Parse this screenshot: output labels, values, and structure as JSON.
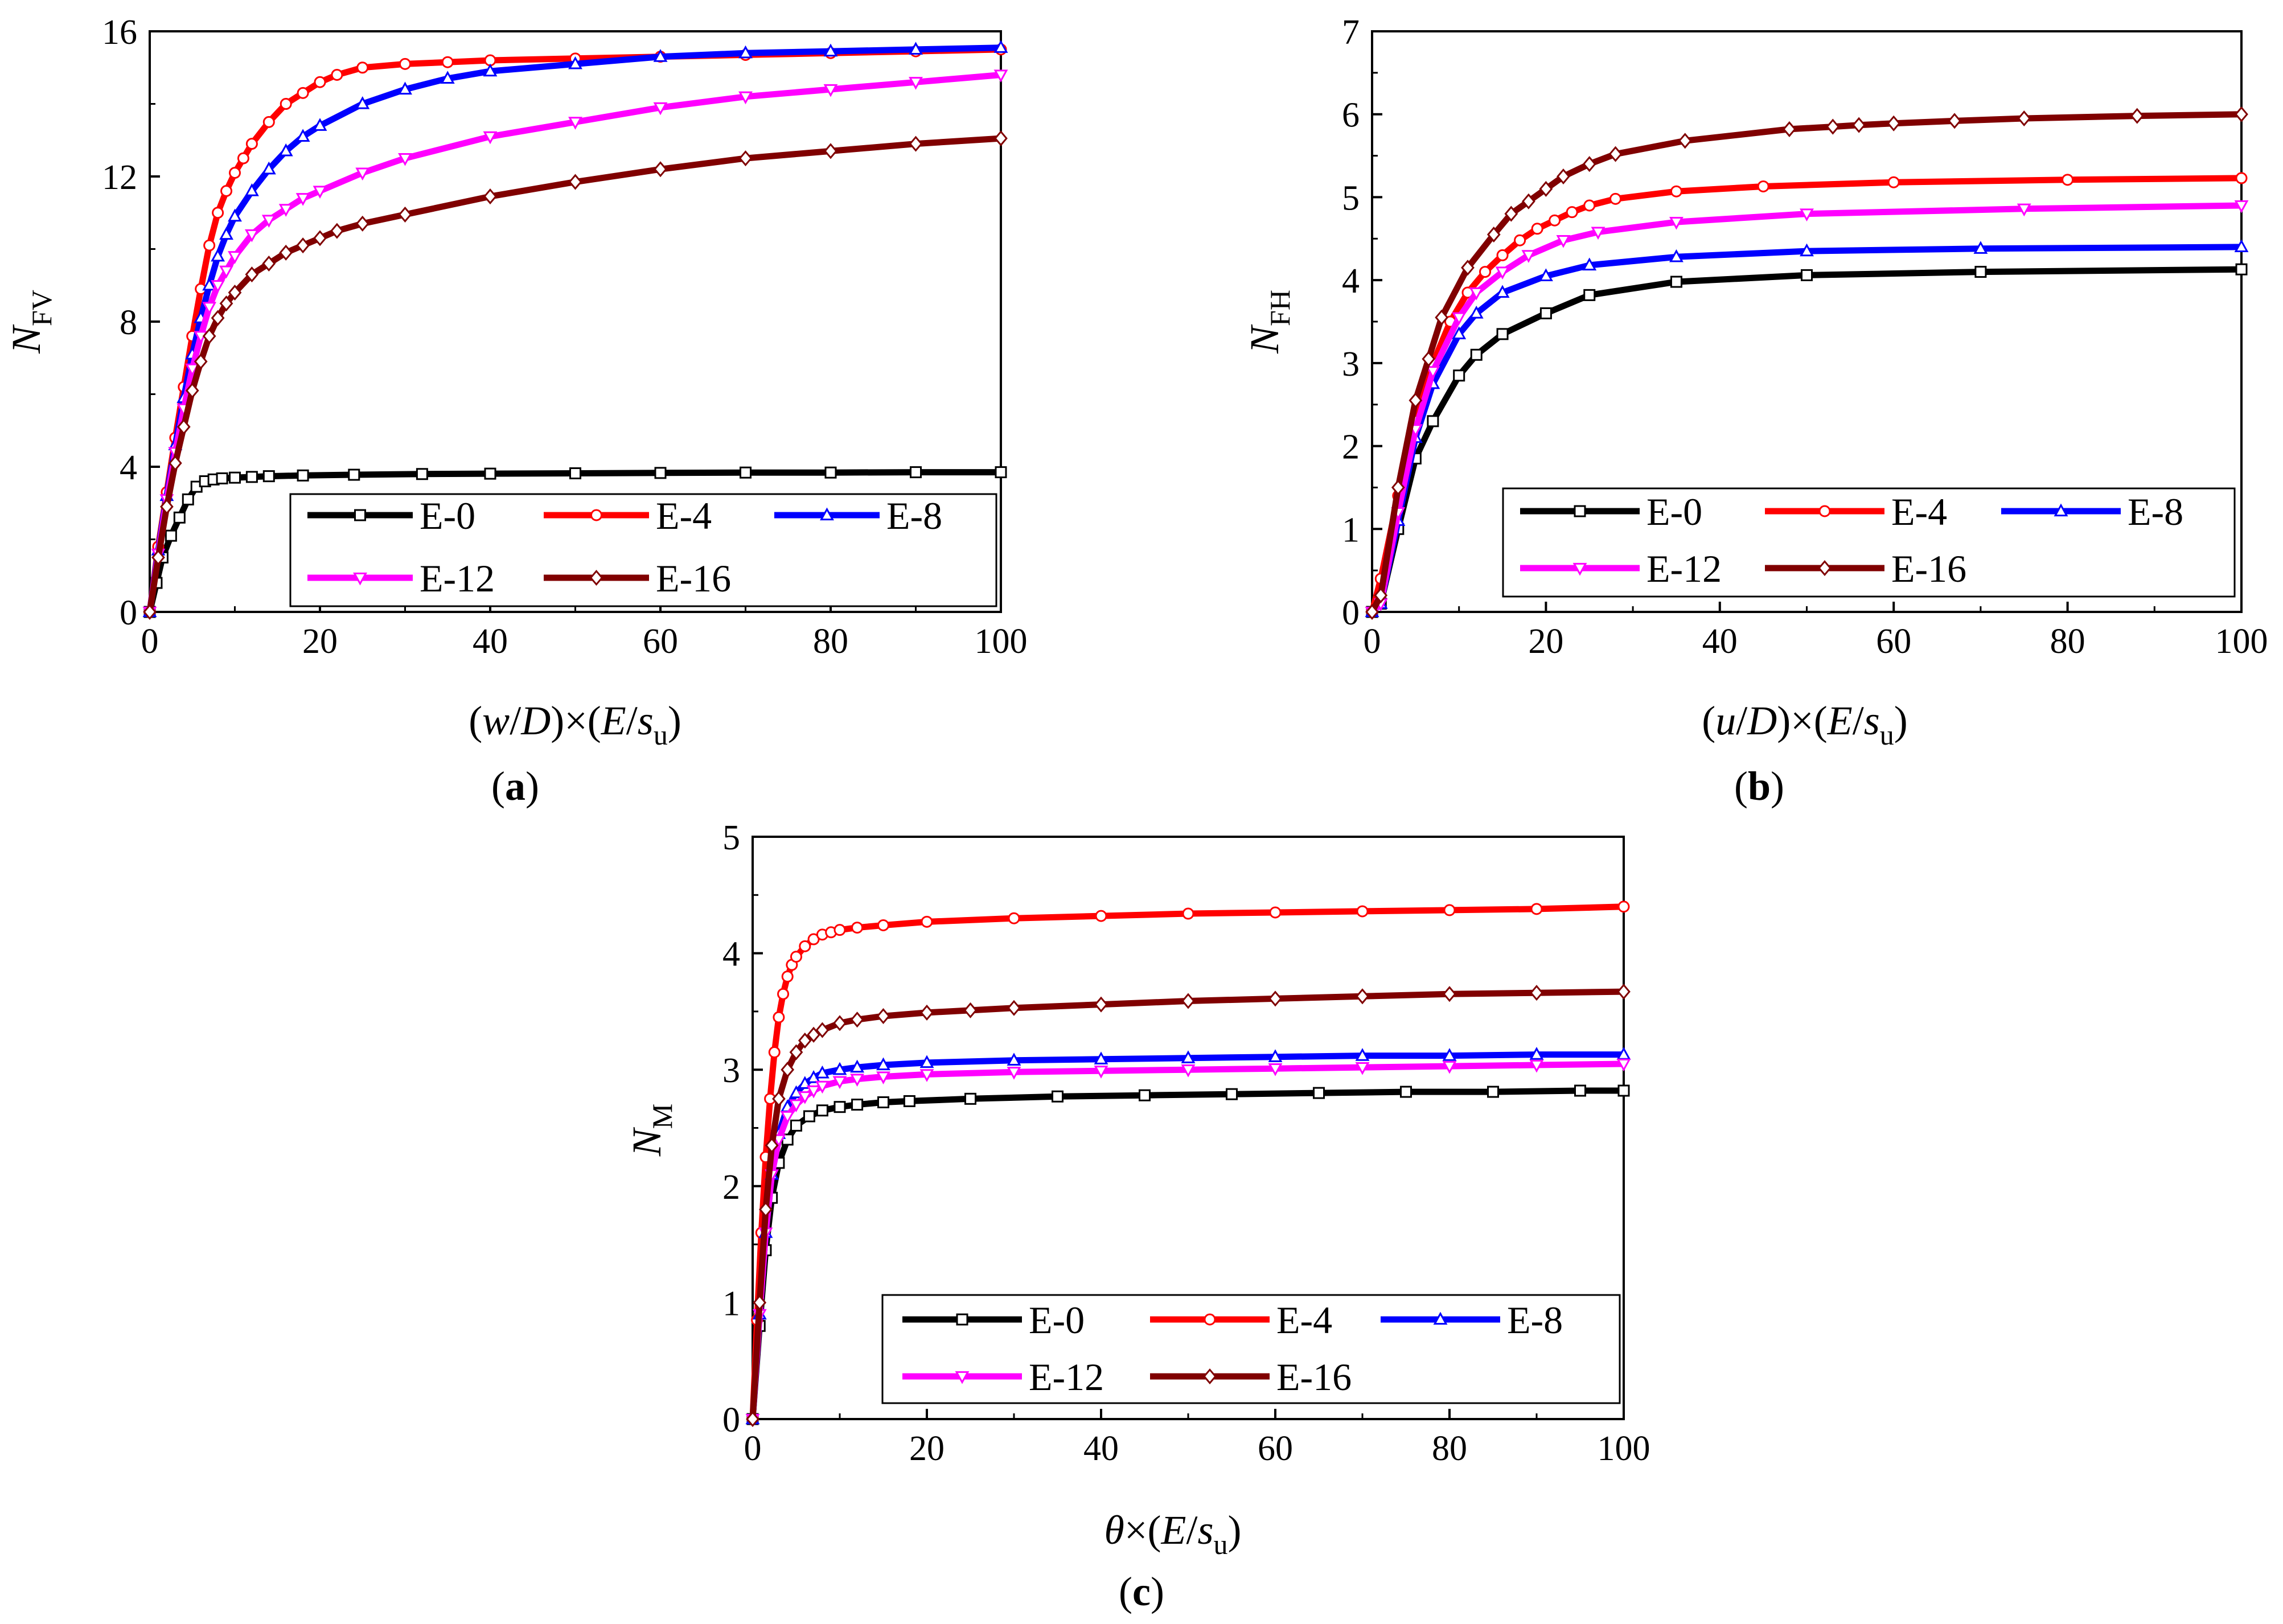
{
  "figure": {
    "panels": [
      {
        "label_open": "(",
        "label": "a",
        "label_close": ")"
      },
      {
        "label_open": "(",
        "label": "b",
        "label_close": ")"
      },
      {
        "label_open": "(",
        "label": "c",
        "label_close": ")"
      }
    ]
  },
  "chart_data": [
    {
      "type": "line",
      "panel": "a",
      "ylabel": {
        "main": "N",
        "sub": "FV"
      },
      "xlabel": {
        "pre": "(",
        "v1": "w",
        "mid": "/",
        "v2": "D",
        "post": ")×(",
        "v3": "E",
        "slash": "/",
        "v4": "s",
        "sub": "u",
        "end": ")"
      },
      "xlim": [
        0,
        100
      ],
      "ylim": [
        0,
        16
      ],
      "xticks": [
        0,
        20,
        40,
        60,
        80,
        100
      ],
      "yticks": [
        0,
        4,
        8,
        12,
        16
      ],
      "legend_position": "bottom-right",
      "series": [
        {
          "name": "E-0",
          "color": "#000000",
          "marker": "square",
          "x": [
            0,
            0.8,
            1.5,
            2.5,
            3.5,
            4.5,
            5.5,
            6.5,
            7.5,
            8.5,
            10,
            12,
            14,
            18,
            24,
            32,
            40,
            50,
            60,
            70,
            80,
            90,
            100
          ],
          "y": [
            0,
            0.8,
            1.5,
            2.1,
            2.6,
            3.1,
            3.45,
            3.6,
            3.65,
            3.68,
            3.7,
            3.72,
            3.74,
            3.76,
            3.78,
            3.8,
            3.81,
            3.82,
            3.83,
            3.84,
            3.84,
            3.85,
            3.85
          ]
        },
        {
          "name": "E-4",
          "color": "#ff0000",
          "marker": "circle",
          "x": [
            0,
            1,
            2,
            3,
            4,
            5,
            6,
            7,
            8,
            9,
            10,
            11,
            12,
            14,
            16,
            18,
            20,
            22,
            25,
            30,
            35,
            40,
            50,
            60,
            70,
            80,
            90,
            100
          ],
          "y": [
            0,
            1.8,
            3.3,
            4.8,
            6.2,
            7.6,
            8.9,
            10.1,
            11.0,
            11.6,
            12.1,
            12.5,
            12.9,
            13.5,
            14.0,
            14.3,
            14.6,
            14.8,
            15.0,
            15.1,
            15.15,
            15.2,
            15.25,
            15.3,
            15.35,
            15.4,
            15.45,
            15.5
          ]
        },
        {
          "name": "E-8",
          "color": "#0000ff",
          "marker": "triangle-up",
          "x": [
            0,
            1,
            2,
            3,
            4,
            5,
            6,
            7,
            8,
            9,
            10,
            12,
            14,
            16,
            18,
            20,
            25,
            30,
            35,
            40,
            50,
            60,
            70,
            80,
            90,
            100
          ],
          "y": [
            0,
            1.7,
            3.2,
            4.6,
            5.9,
            7.1,
            8.1,
            9.0,
            9.8,
            10.4,
            10.9,
            11.6,
            12.2,
            12.7,
            13.1,
            13.4,
            14.0,
            14.4,
            14.7,
            14.9,
            15.1,
            15.3,
            15.4,
            15.45,
            15.5,
            15.55
          ]
        },
        {
          "name": "E-12",
          "color": "#ff00ff",
          "marker": "triangle-down",
          "x": [
            0,
            1,
            2,
            3,
            4,
            5,
            6,
            7,
            8,
            9,
            10,
            12,
            14,
            16,
            18,
            20,
            25,
            30,
            40,
            50,
            60,
            70,
            80,
            90,
            100
          ],
          "y": [
            0,
            1.6,
            3.1,
            4.4,
            5.6,
            6.7,
            7.6,
            8.4,
            9.0,
            9.4,
            9.8,
            10.4,
            10.8,
            11.1,
            11.4,
            11.6,
            12.1,
            12.5,
            13.1,
            13.5,
            13.9,
            14.2,
            14.4,
            14.6,
            14.8
          ]
        },
        {
          "name": "E-16",
          "color": "#800000",
          "marker": "diamond",
          "x": [
            0,
            1,
            2,
            3,
            4,
            5,
            6,
            7,
            8,
            9,
            10,
            12,
            14,
            16,
            18,
            20,
            22,
            25,
            30,
            40,
            50,
            60,
            70,
            80,
            90,
            100
          ],
          "y": [
            0,
            1.5,
            2.9,
            4.1,
            5.1,
            6.1,
            6.9,
            7.6,
            8.1,
            8.5,
            8.8,
            9.3,
            9.6,
            9.9,
            10.1,
            10.3,
            10.5,
            10.7,
            10.95,
            11.45,
            11.85,
            12.2,
            12.5,
            12.7,
            12.9,
            13.05
          ]
        }
      ]
    },
    {
      "type": "line",
      "panel": "b",
      "ylabel": {
        "main": "N",
        "sub": "FH"
      },
      "xlabel": {
        "pre": "(",
        "v1": "u",
        "mid": "/",
        "v2": "D",
        "post": ")×(",
        "v3": "E",
        "slash": "/",
        "v4": "s",
        "sub": "u",
        "end": ")"
      },
      "xlim": [
        0,
        100
      ],
      "ylim": [
        0,
        7
      ],
      "xticks": [
        0,
        20,
        40,
        60,
        80,
        100
      ],
      "yticks": [
        0,
        1,
        2,
        3,
        4,
        5,
        6,
        7
      ],
      "legend_position": "bottom-right",
      "series": [
        {
          "name": "E-0",
          "color": "#000000",
          "marker": "square",
          "x": [
            0,
            1,
            3,
            5,
            7,
            10,
            12,
            15,
            20,
            25,
            35,
            50,
            70,
            100
          ],
          "y": [
            0,
            0.1,
            1.0,
            1.85,
            2.3,
            2.85,
            3.1,
            3.35,
            3.6,
            3.82,
            3.98,
            4.06,
            4.1,
            4.13
          ]
        },
        {
          "name": "E-4",
          "color": "#ff0000",
          "marker": "circle",
          "x": [
            0,
            1,
            3,
            5,
            7,
            9,
            11,
            13,
            15,
            17,
            19,
            21,
            23,
            25,
            28,
            35,
            45,
            60,
            80,
            100
          ],
          "y": [
            0,
            0.4,
            1.4,
            2.3,
            3.0,
            3.5,
            3.85,
            4.1,
            4.3,
            4.48,
            4.62,
            4.72,
            4.82,
            4.9,
            4.98,
            5.07,
            5.13,
            5.18,
            5.21,
            5.23
          ]
        },
        {
          "name": "E-8",
          "color": "#0000ff",
          "marker": "triangle-up",
          "x": [
            0,
            1,
            3,
            5,
            7,
            10,
            12,
            15,
            20,
            25,
            35,
            50,
            70,
            100
          ],
          "y": [
            0,
            0.1,
            1.1,
            2.1,
            2.75,
            3.35,
            3.6,
            3.85,
            4.05,
            4.18,
            4.28,
            4.35,
            4.38,
            4.4
          ]
        },
        {
          "name": "E-12",
          "color": "#ff00ff",
          "marker": "triangle-down",
          "x": [
            0,
            1,
            3,
            5,
            7,
            10,
            12,
            15,
            18,
            22,
            26,
            35,
            50,
            75,
            100
          ],
          "y": [
            0,
            0.1,
            1.2,
            2.2,
            2.9,
            3.55,
            3.85,
            4.1,
            4.3,
            4.48,
            4.58,
            4.7,
            4.8,
            4.86,
            4.9
          ]
        },
        {
          "name": "E-16",
          "color": "#800000",
          "marker": "diamond",
          "x": [
            0,
            1,
            3,
            5,
            6.5,
            8,
            11,
            14,
            16,
            18,
            20,
            22,
            25,
            28,
            36,
            48,
            53,
            56,
            60,
            67,
            75,
            88,
            100
          ],
          "y": [
            0,
            0.2,
            1.5,
            2.55,
            3.05,
            3.55,
            4.15,
            4.55,
            4.8,
            4.95,
            5.1,
            5.25,
            5.4,
            5.52,
            5.68,
            5.82,
            5.85,
            5.87,
            5.89,
            5.92,
            5.95,
            5.98,
            6.0
          ]
        }
      ]
    },
    {
      "type": "line",
      "panel": "c",
      "ylabel": {
        "main": "N",
        "sub": "M"
      },
      "xlabel": {
        "pre": "",
        "v1": "θ",
        "mid": "",
        "v2": "",
        "post": "×(",
        "v3": "E",
        "slash": "/",
        "v4": "s",
        "sub": "u",
        "end": ")"
      },
      "xlim": [
        0,
        100
      ],
      "ylim": [
        0,
        5
      ],
      "xticks": [
        0,
        20,
        40,
        60,
        80,
        100
      ],
      "yticks": [
        0,
        1,
        2,
        3,
        4,
        5
      ],
      "legend_position": "bottom-right",
      "series": [
        {
          "name": "E-0",
          "color": "#000000",
          "marker": "square",
          "x": [
            0,
            0.8,
            1.5,
            2.2,
            3,
            4,
            5,
            6.5,
            8,
            10,
            12,
            15,
            18,
            25,
            35,
            45,
            55,
            65,
            75,
            85,
            95,
            100
          ],
          "y": [
            0,
            0.8,
            1.45,
            1.9,
            2.2,
            2.4,
            2.52,
            2.6,
            2.65,
            2.68,
            2.7,
            2.72,
            2.73,
            2.75,
            2.77,
            2.78,
            2.79,
            2.8,
            2.81,
            2.81,
            2.82,
            2.82
          ]
        },
        {
          "name": "E-4",
          "color": "#ff0000",
          "marker": "circle",
          "x": [
            0,
            0.5,
            1,
            1.5,
            2,
            2.5,
            3,
            3.5,
            4,
            4.5,
            5,
            6,
            7,
            8,
            9,
            10,
            12,
            15,
            20,
            30,
            40,
            50,
            60,
            70,
            80,
            90,
            100
          ],
          "y": [
            0,
            0.85,
            1.6,
            2.25,
            2.75,
            3.15,
            3.45,
            3.65,
            3.8,
            3.9,
            3.97,
            4.06,
            4.12,
            4.16,
            4.18,
            4.2,
            4.22,
            4.24,
            4.27,
            4.3,
            4.32,
            4.34,
            4.35,
            4.36,
            4.37,
            4.38,
            4.4
          ]
        },
        {
          "name": "E-8",
          "color": "#0000ff",
          "marker": "triangle-up",
          "x": [
            0,
            0.8,
            1.5,
            2.2,
            3,
            4,
            5,
            6,
            7,
            8,
            10,
            12,
            15,
            20,
            30,
            40,
            50,
            60,
            70,
            80,
            90,
            100
          ],
          "y": [
            0,
            0.9,
            1.6,
            2.1,
            2.45,
            2.68,
            2.8,
            2.88,
            2.93,
            2.97,
            3.0,
            3.02,
            3.04,
            3.06,
            3.08,
            3.09,
            3.1,
            3.11,
            3.12,
            3.12,
            3.13,
            3.13
          ]
        },
        {
          "name": "E-12",
          "color": "#ff00ff",
          "marker": "triangle-down",
          "x": [
            0,
            0.8,
            1.5,
            2.2,
            3,
            4,
            5,
            6,
            7,
            8,
            10,
            12,
            15,
            20,
            30,
            40,
            50,
            60,
            70,
            80,
            90,
            100
          ],
          "y": [
            0,
            0.9,
            1.6,
            2.1,
            2.4,
            2.6,
            2.7,
            2.77,
            2.82,
            2.86,
            2.9,
            2.92,
            2.94,
            2.96,
            2.98,
            2.99,
            3.0,
            3.01,
            3.02,
            3.03,
            3.04,
            3.05
          ]
        },
        {
          "name": "E-16",
          "color": "#800000",
          "marker": "diamond",
          "x": [
            0,
            0.8,
            1.5,
            2.2,
            3,
            4,
            5,
            6,
            7,
            8,
            10,
            12,
            15,
            20,
            25,
            30,
            40,
            50,
            60,
            70,
            80,
            90,
            100
          ],
          "y": [
            0,
            1.0,
            1.8,
            2.35,
            2.75,
            3.0,
            3.15,
            3.25,
            3.3,
            3.34,
            3.4,
            3.43,
            3.46,
            3.49,
            3.51,
            3.53,
            3.56,
            3.59,
            3.61,
            3.63,
            3.65,
            3.66,
            3.67
          ]
        }
      ]
    }
  ]
}
